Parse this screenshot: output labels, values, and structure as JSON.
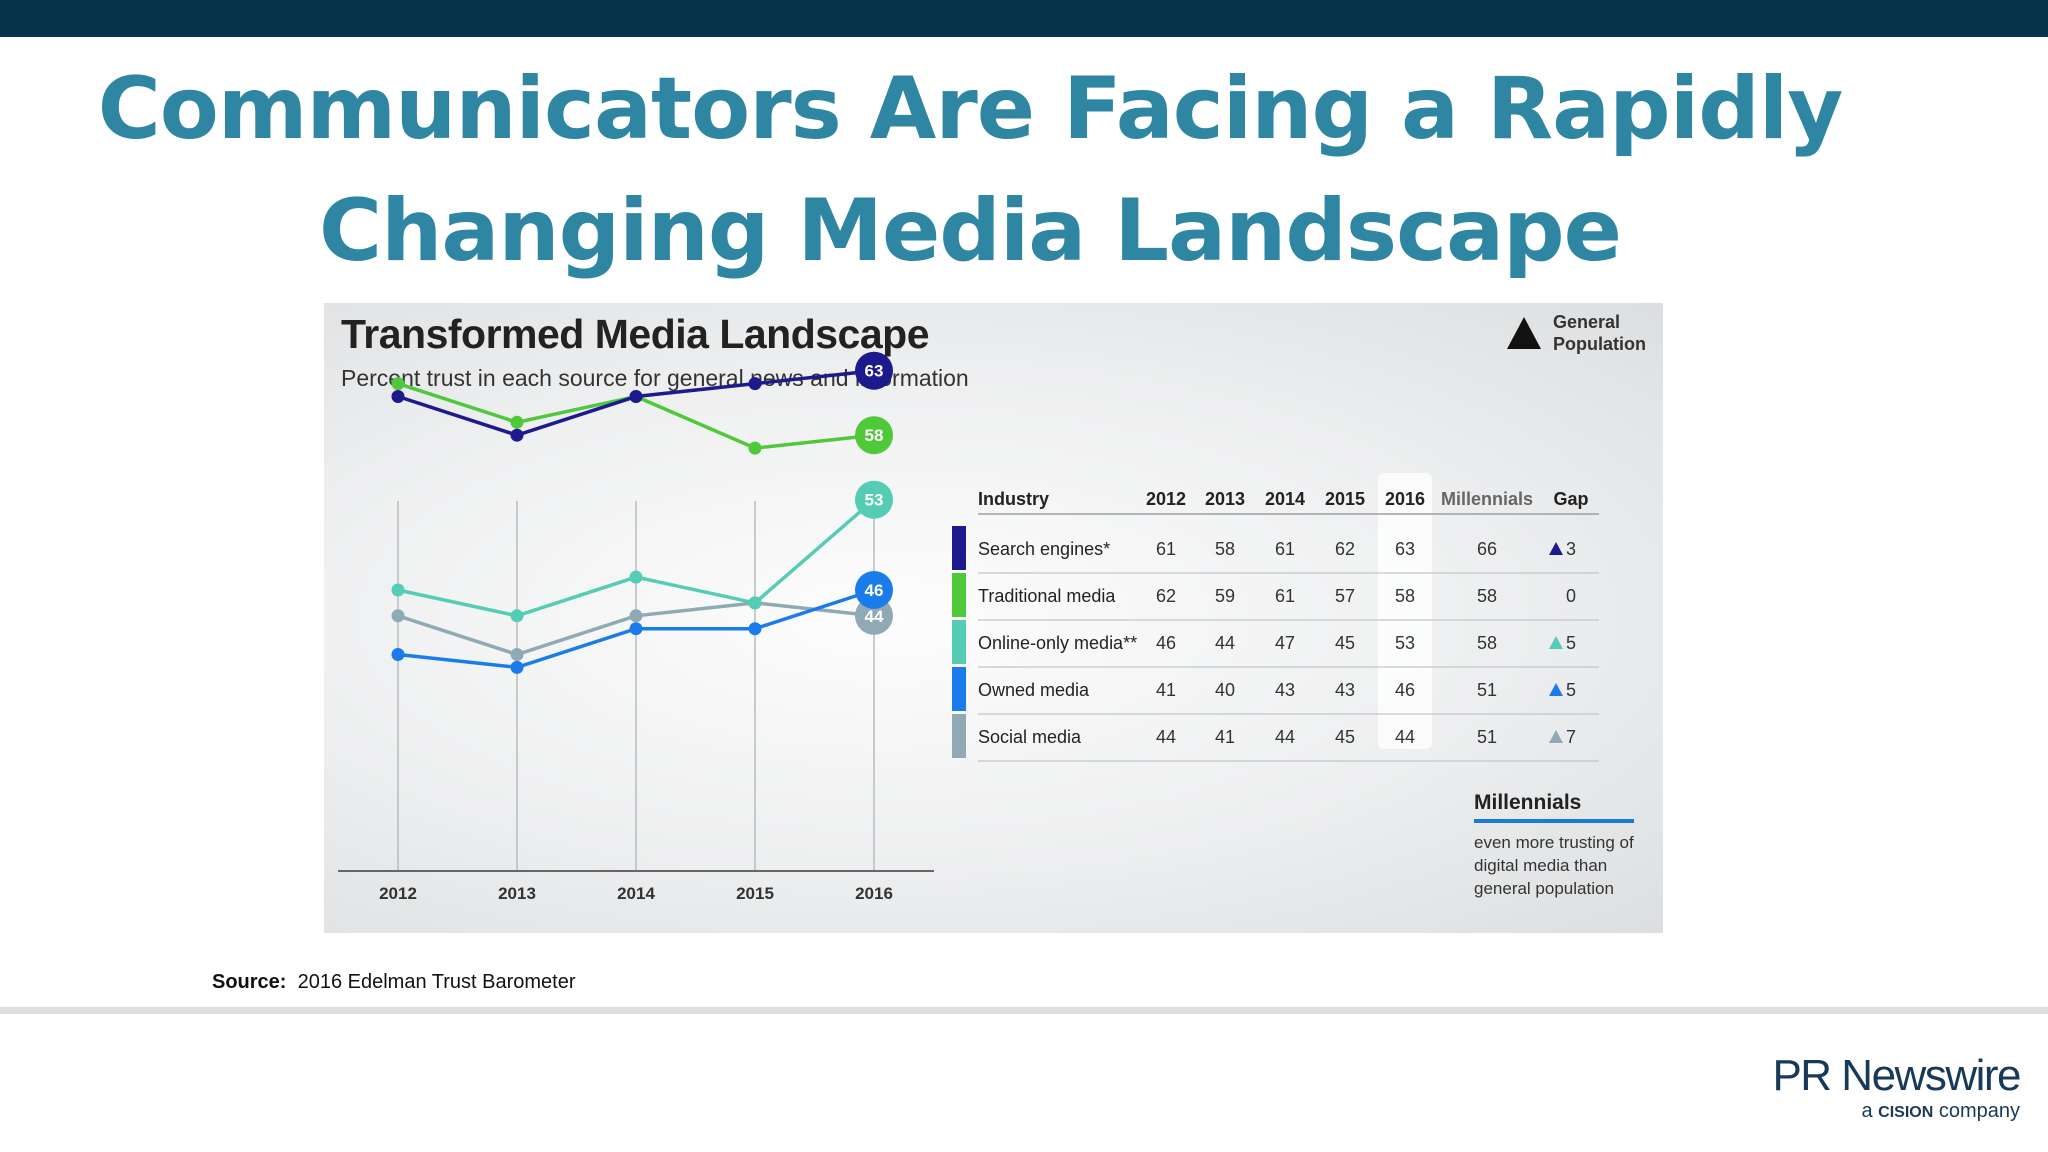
{
  "slide": {
    "title_line1": "Communicators Are Facing a Rapidly",
    "title_line2": "Changing Media Landscape",
    "source_label": "Source:",
    "source_text": "2016 Edelman Trust Barometer",
    "logo_main": "PR Newswire",
    "logo_prefix": "a",
    "logo_brand": "CISION",
    "logo_suffix": "company",
    "brand_color": "#2e86a3",
    "topbar_color": "#07344d"
  },
  "chart_data": {
    "type": "line",
    "title": "Transformed Media Landscape",
    "subtitle": "Percent trust in each source for general news and information",
    "legend": {
      "label_line1": "General",
      "label_line2": "Population",
      "placement": "top-right"
    },
    "x": [
      "2012",
      "2013",
      "2014",
      "2015",
      "2016"
    ],
    "series": [
      {
        "name": "Search engines*",
        "values": [
          61,
          58,
          61,
          62,
          63
        ],
        "color": "#1c1a8c"
      },
      {
        "name": "Traditional media",
        "values": [
          62,
          59,
          61,
          57,
          58
        ],
        "color": "#4fc93a"
      },
      {
        "name": "Online-only media**",
        "values": [
          46,
          44,
          47,
          45,
          53
        ],
        "color": "#55ccb4"
      },
      {
        "name": "Owned media",
        "values": [
          41,
          40,
          43,
          43,
          46
        ],
        "color": "#1a7bea"
      },
      {
        "name": "Social media",
        "values": [
          44,
          41,
          44,
          45,
          44
        ],
        "color": "#8fa9b5"
      }
    ],
    "ylim": [
      36,
      66
    ],
    "grid": "vertical",
    "table": {
      "headers": [
        "Industry",
        "2012",
        "2013",
        "2014",
        "2015",
        "2016",
        "Millennials",
        "Gap"
      ],
      "rows": [
        {
          "industry": "Search engines*",
          "values": [
            "61",
            "58",
            "61",
            "62",
            "63"
          ],
          "millennials": "66",
          "gap": "3",
          "gap_up": true
        },
        {
          "industry": "Traditional media",
          "values": [
            "62",
            "59",
            "61",
            "57",
            "58"
          ],
          "millennials": "58",
          "gap": "0",
          "gap_up": false
        },
        {
          "industry": "Online-only media**",
          "values": [
            "46",
            "44",
            "47",
            "45",
            "53"
          ],
          "millennials": "58",
          "gap": "5",
          "gap_up": true
        },
        {
          "industry": "Owned media",
          "values": [
            "41",
            "40",
            "43",
            "43",
            "46"
          ],
          "millennials": "51",
          "gap": "5",
          "gap_up": true
        },
        {
          "industry": "Social media",
          "values": [
            "44",
            "41",
            "44",
            "45",
            "44"
          ],
          "millennials": "51",
          "gap": "7",
          "gap_up": true
        }
      ]
    },
    "annotation": {
      "title": "Millennials",
      "text": "even more trusting of digital media than general population"
    }
  }
}
